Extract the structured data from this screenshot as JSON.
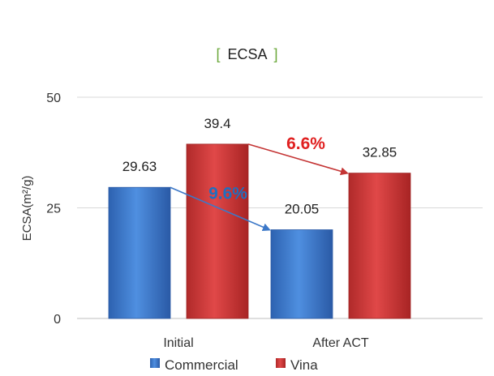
{
  "chart_data": {
    "type": "bar",
    "title": "ECSA",
    "title_bracket_left": "[",
    "title_bracket_right": "]",
    "ylabel": "ECSA(m²/g)",
    "xlabel": "",
    "ylim": [
      0,
      50
    ],
    "yticks": [
      "0",
      "25",
      "50"
    ],
    "grid": true,
    "legend_position": "bottom-center",
    "categories": [
      "Initial",
      "After ACT"
    ],
    "series": [
      {
        "name": "Commercial",
        "values": [
          29.63,
          20.05
        ],
        "labels": [
          "29.63",
          "20.05"
        ],
        "color": "#3c78c8"
      },
      {
        "name": "Vina",
        "values": [
          39.4,
          32.85
        ],
        "labels": [
          "39.4",
          "32.85"
        ],
        "color": "#c43434"
      }
    ],
    "annotations": [
      {
        "text": "9.6%",
        "color": "#1f6fc0",
        "series": "Commercial",
        "from": "Initial",
        "to": "After ACT"
      },
      {
        "text": "6.6%",
        "color": "#e02020",
        "series": "Vina",
        "from": "Initial",
        "to": "After ACT"
      }
    ],
    "bracket_color": "#6aa83a"
  }
}
